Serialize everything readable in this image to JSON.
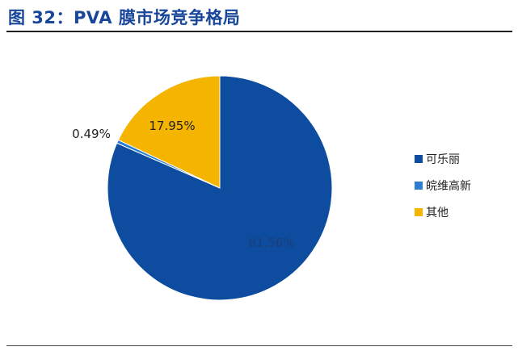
{
  "header": {
    "title": "图 32：PVA 膜市场竞争格局"
  },
  "chart_data": {
    "type": "pie",
    "title": "",
    "slices": [
      {
        "label": "可乐丽",
        "value": 81.56,
        "value_label": "81.56%",
        "color": "#0d4c9e"
      },
      {
        "label": "皖维高新",
        "value": 0.49,
        "value_label": "0.49%",
        "color": "#2c7fcf"
      },
      {
        "label": "其他",
        "value": 17.95,
        "value_label": "17.95%",
        "color": "#f5b400"
      }
    ],
    "start_angle": "12 o'clock, clockwise",
    "legend_position": "right"
  }
}
